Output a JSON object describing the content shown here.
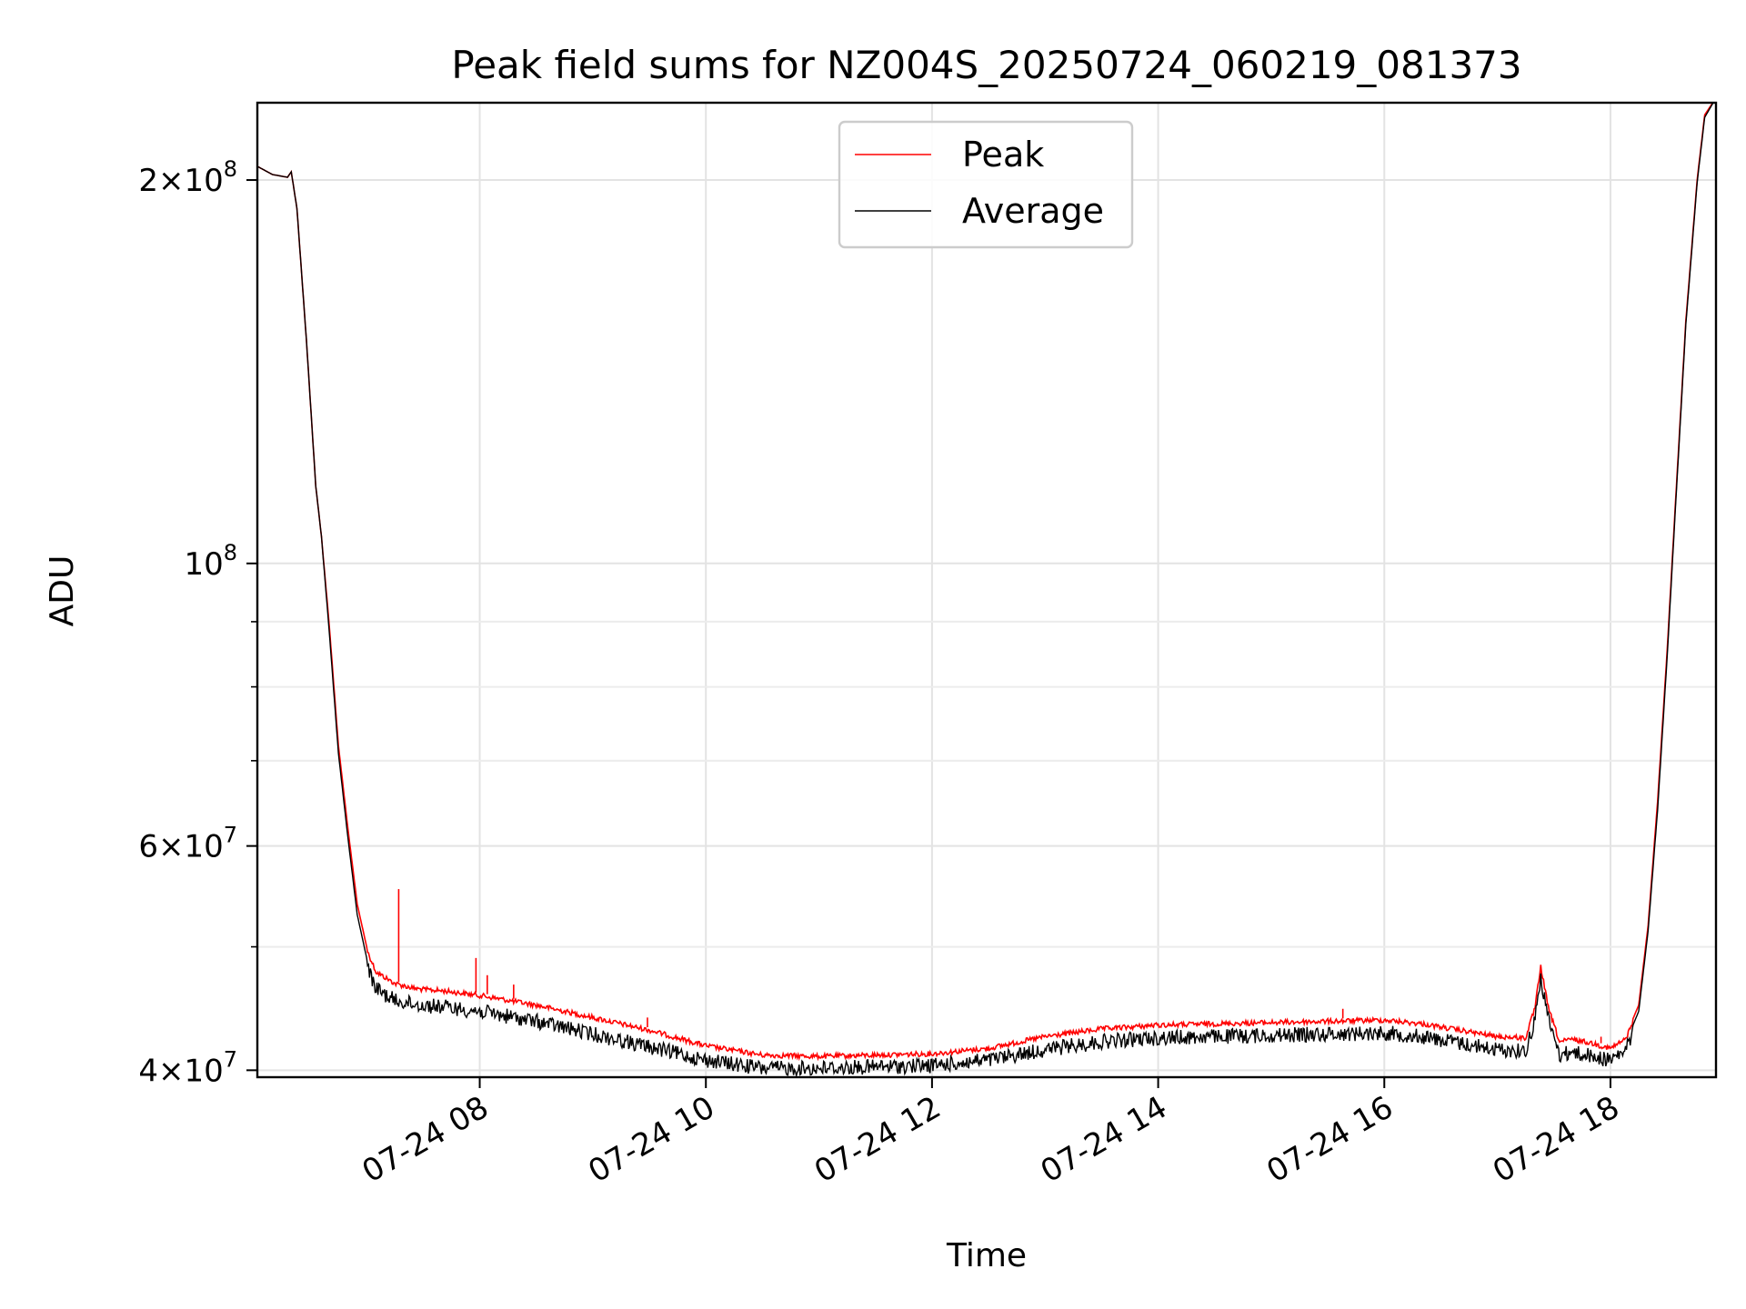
{
  "chart_data": {
    "type": "line",
    "title": "Peak field sums for NZ004S_20250724_060219_081373",
    "xlabel": "Time",
    "ylabel": "ADU",
    "y_scale": "log",
    "ylim": [
      39500000,
      230000000
    ],
    "xlim": [
      "2025-07-24T06:02",
      "2025-07-24T18:56"
    ],
    "grid": true,
    "legend_position": "top-center",
    "x_ticks": [
      {
        "t": "2025-07-24T08:00",
        "label": "07-24 08"
      },
      {
        "t": "2025-07-24T10:00",
        "label": "07-24 10"
      },
      {
        "t": "2025-07-24T12:00",
        "label": "07-24 12"
      },
      {
        "t": "2025-07-24T14:00",
        "label": "07-24 14"
      },
      {
        "t": "2025-07-24T16:00",
        "label": "07-24 16"
      },
      {
        "t": "2025-07-24T18:00",
        "label": "07-24 18"
      }
    ],
    "y_ticks": [
      {
        "value": 40000000,
        "base": "4",
        "exponent": "7"
      },
      {
        "value": 60000000,
        "base": "6",
        "exponent": "7"
      },
      {
        "value": 100000000,
        "base": "",
        "exponent": "8"
      },
      {
        "value": 200000000,
        "base": "2",
        "exponent": "8"
      }
    ],
    "y_minor_ticks": [
      50000000,
      70000000,
      80000000,
      90000000
    ],
    "series": [
      {
        "name": "Peak",
        "color": "#ff0000",
        "points": [
          [
            "2025-07-24T06:02",
            205000000
          ],
          [
            "2025-07-24T06:10",
            202000000
          ],
          [
            "2025-07-24T06:18",
            201000000
          ],
          [
            "2025-07-24T06:20",
            203000000
          ],
          [
            "2025-07-24T06:23",
            190000000
          ],
          [
            "2025-07-24T06:28",
            150000000
          ],
          [
            "2025-07-24T06:33",
            115000000
          ],
          [
            "2025-07-24T06:36",
            105000000
          ],
          [
            "2025-07-24T06:40",
            90000000
          ],
          [
            "2025-07-24T06:45",
            72000000
          ],
          [
            "2025-07-24T06:50",
            62000000
          ],
          [
            "2025-07-24T06:55",
            54000000
          ],
          [
            "2025-07-24T07:00",
            50000000
          ],
          [
            "2025-07-24T07:05",
            48000000
          ],
          [
            "2025-07-24T07:15",
            47000000
          ],
          [
            "2025-07-24T07:25",
            46600000
          ],
          [
            "2025-07-24T07:30",
            46500000
          ],
          [
            "2025-07-24T07:40",
            46400000
          ],
          [
            "2025-07-24T08:00",
            46000000
          ],
          [
            "2025-07-24T08:30",
            45200000
          ],
          [
            "2025-07-24T09:00",
            44200000
          ],
          [
            "2025-07-24T09:30",
            43200000
          ],
          [
            "2025-07-24T10:00",
            42000000
          ],
          [
            "2025-07-24T10:30",
            41300000
          ],
          [
            "2025-07-24T11:00",
            41200000
          ],
          [
            "2025-07-24T11:30",
            41300000
          ],
          [
            "2025-07-24T12:00",
            41400000
          ],
          [
            "2025-07-24T12:30",
            41800000
          ],
          [
            "2025-07-24T13:00",
            42700000
          ],
          [
            "2025-07-24T13:30",
            43300000
          ],
          [
            "2025-07-24T14:00",
            43600000
          ],
          [
            "2025-07-24T14:30",
            43700000
          ],
          [
            "2025-07-24T15:00",
            43800000
          ],
          [
            "2025-07-24T15:30",
            43900000
          ],
          [
            "2025-07-24T16:00",
            44000000
          ],
          [
            "2025-07-24T16:20",
            43700000
          ],
          [
            "2025-07-24T16:40",
            43200000
          ],
          [
            "2025-07-24T17:00",
            42700000
          ],
          [
            "2025-07-24T17:15",
            42600000
          ],
          [
            "2025-07-24T17:20",
            45000000
          ],
          [
            "2025-07-24T17:23",
            48500000
          ],
          [
            "2025-07-24T17:27",
            45000000
          ],
          [
            "2025-07-24T17:33",
            42300000
          ],
          [
            "2025-07-24T17:40",
            42500000
          ],
          [
            "2025-07-24T17:50",
            42200000
          ],
          [
            "2025-07-24T18:00",
            41800000
          ],
          [
            "2025-07-24T18:08",
            42500000
          ],
          [
            "2025-07-24T18:15",
            45000000
          ],
          [
            "2025-07-24T18:20",
            52000000
          ],
          [
            "2025-07-24T18:25",
            65000000
          ],
          [
            "2025-07-24T18:30",
            85000000
          ],
          [
            "2025-07-24T18:35",
            115000000
          ],
          [
            "2025-07-24T18:40",
            155000000
          ],
          [
            "2025-07-24T18:46",
            200000000
          ],
          [
            "2025-07-24T18:50",
            225000000
          ],
          [
            "2025-07-24T18:56",
            232000000
          ]
        ],
        "spikes": [
          [
            "2025-07-24T07:17",
            55500000
          ],
          [
            "2025-07-24T07:58",
            49000000
          ],
          [
            "2025-07-24T08:04",
            47500000
          ],
          [
            "2025-07-24T08:18",
            46700000
          ],
          [
            "2025-07-24T09:29",
            44000000
          ],
          [
            "2025-07-24T15:38",
            44700000
          ],
          [
            "2025-07-24T17:55",
            42500000
          ]
        ]
      },
      {
        "name": "Average",
        "color": "#000000",
        "points": [
          [
            "2025-07-24T06:02",
            205000000
          ],
          [
            "2025-07-24T06:10",
            202000000
          ],
          [
            "2025-07-24T06:18",
            201000000
          ],
          [
            "2025-07-24T06:20",
            203000000
          ],
          [
            "2025-07-24T06:23",
            190000000
          ],
          [
            "2025-07-24T06:28",
            150000000
          ],
          [
            "2025-07-24T06:33",
            115000000
          ],
          [
            "2025-07-24T06:36",
            105000000
          ],
          [
            "2025-07-24T06:40",
            89000000
          ],
          [
            "2025-07-24T06:45",
            71000000
          ],
          [
            "2025-07-24T06:50",
            61000000
          ],
          [
            "2025-07-24T06:55",
            53000000
          ],
          [
            "2025-07-24T07:00",
            49000000
          ],
          [
            "2025-07-24T07:05",
            47000000
          ],
          [
            "2025-07-24T07:15",
            46000000
          ],
          [
            "2025-07-24T07:25",
            45700000
          ],
          [
            "2025-07-24T07:30",
            45600000
          ],
          [
            "2025-07-24T07:40",
            45500000
          ],
          [
            "2025-07-24T08:00",
            45100000
          ],
          [
            "2025-07-24T08:30",
            44300000
          ],
          [
            "2025-07-24T09:00",
            43300000
          ],
          [
            "2025-07-24T09:30",
            42300000
          ],
          [
            "2025-07-24T10:00",
            41300000
          ],
          [
            "2025-07-24T10:30",
            40700000
          ],
          [
            "2025-07-24T11:00",
            40700000
          ],
          [
            "2025-07-24T11:30",
            40800000
          ],
          [
            "2025-07-24T12:00",
            40900000
          ],
          [
            "2025-07-24T12:30",
            41300000
          ],
          [
            "2025-07-24T13:00",
            42100000
          ],
          [
            "2025-07-24T13:30",
            42700000
          ],
          [
            "2025-07-24T14:00",
            43000000
          ],
          [
            "2025-07-24T14:30",
            43100000
          ],
          [
            "2025-07-24T15:00",
            43200000
          ],
          [
            "2025-07-24T15:30",
            43300000
          ],
          [
            "2025-07-24T16:00",
            43400000
          ],
          [
            "2025-07-24T16:20",
            43100000
          ],
          [
            "2025-07-24T16:40",
            42600000
          ],
          [
            "2025-07-24T17:00",
            42100000
          ],
          [
            "2025-07-24T17:15",
            42000000
          ],
          [
            "2025-07-24T17:20",
            44500000
          ],
          [
            "2025-07-24T17:23",
            48000000
          ],
          [
            "2025-07-24T17:27",
            44500000
          ],
          [
            "2025-07-24T17:33",
            41700000
          ],
          [
            "2025-07-24T17:40",
            41900000
          ],
          [
            "2025-07-24T17:50",
            41600000
          ],
          [
            "2025-07-24T18:00",
            41300000
          ],
          [
            "2025-07-24T18:08",
            42000000
          ],
          [
            "2025-07-24T18:15",
            44500000
          ],
          [
            "2025-07-24T18:20",
            51500000
          ],
          [
            "2025-07-24T18:25",
            64000000
          ],
          [
            "2025-07-24T18:30",
            84000000
          ],
          [
            "2025-07-24T18:35",
            114000000
          ],
          [
            "2025-07-24T18:40",
            154000000
          ],
          [
            "2025-07-24T18:46",
            199000000
          ],
          [
            "2025-07-24T18:50",
            224000000
          ],
          [
            "2025-07-24T18:56",
            232000000
          ]
        ]
      }
    ]
  }
}
